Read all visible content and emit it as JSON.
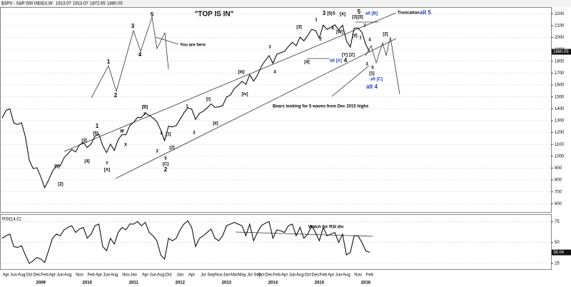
{
  "header": {
    "symbol": "$SPX - S&P 500 INDEX,W",
    "ohlc": [
      1913.07,
      1913.07,
      1872.65,
      1880.05
    ]
  },
  "chart_data": [
    {
      "type": "line",
      "title": "\"TOP IS IN\"",
      "categories": [
        null,
        "Apr",
        null,
        "Jun",
        null,
        "Aug",
        null,
        "Oct",
        null,
        "Dec",
        null,
        "Feb",
        null,
        "Apr",
        null,
        "Jun",
        null,
        "Aug",
        null,
        null,
        "Nov",
        null,
        null,
        "Feb",
        null,
        "Apr",
        null,
        "Jun",
        null,
        "Aug",
        null,
        null,
        "Nov",
        null,
        "Jan",
        null,
        null,
        "Apr",
        null,
        "Jun",
        null,
        "Aug",
        null,
        "Oct",
        null,
        null,
        "Jan",
        null,
        null,
        "Apr",
        null,
        null,
        "Jul",
        null,
        "Sep",
        null,
        "Nov",
        null,
        "Jan",
        null,
        "Mar",
        null,
        "May",
        null,
        "Jul",
        null,
        "Sep",
        "Oct",
        null,
        "Dec",
        null,
        "Feb",
        null,
        "Apr",
        null,
        "Jun",
        null,
        "Aug",
        null,
        "Oct",
        null,
        "Dec",
        null,
        "Feb",
        null,
        "Apr",
        null,
        "Jun",
        null,
        "Aug",
        null,
        null,
        "Nov",
        null,
        null,
        "Feb"
      ],
      "values": [
        1322,
        1385,
        1400,
        1280,
        1267,
        1283,
        1166,
        968,
        896,
        903,
        826,
        735,
        798,
        873,
        919,
        919,
        987,
        1021,
        1057,
        1036,
        1096,
        1115,
        1074,
        1104,
        1169,
        1187,
        1089,
        1031,
        1102,
        1049,
        1141,
        1183,
        1181,
        1258,
        1286,
        1327,
        1326,
        1364,
        1345,
        1321,
        1292,
        1219,
        1131,
        1253,
        1247,
        1258,
        1312,
        1366,
        1408,
        1398,
        1310,
        1362,
        1379,
        1407,
        1441,
        1412,
        1416,
        1426,
        1498,
        1515,
        1569,
        1598,
        1631,
        1606,
        1686,
        1633,
        1682,
        1757,
        1806,
        1848,
        1783,
        1859,
        1872,
        1884,
        1924,
        1960,
        1931,
        2003,
        1972,
        2018,
        2068,
        2059,
        1995,
        2105,
        2068,
        2086,
        2107,
        2063,
        2104,
        1972,
        1920,
        2079,
        2080,
        2044,
        1940,
        1880.05
      ],
      "color": "#111111",
      "ylim": [
        530,
        2250
      ],
      "yticks": [
        600,
        700,
        800,
        900,
        1000,
        1100,
        1200,
        1300,
        1400,
        1500,
        1600,
        1700,
        1800,
        1900,
        2000,
        2100,
        2200
      ],
      "grid": true,
      "year_labels": [
        "2009",
        "2010",
        "2011",
        "2012",
        "2013",
        "2014",
        "2015",
        "2016"
      ],
      "annotations": [
        "You are here",
        "Truncation",
        "alt 5",
        "Bears looking for 5 waves from Dec 2015 highs",
        "alt [B]",
        "alt [A]",
        "alt [C]",
        "alt 4",
        "1",
        "2",
        "3",
        "4",
        "5",
        "1",
        "[5]",
        "[3]",
        "[4]",
        "[1]",
        "[2]",
        "W",
        "X",
        "Y",
        "[A]",
        "[B]",
        "Y",
        "3",
        "4",
        "5",
        "[C]",
        "2",
        "[1]",
        "[2]",
        "1",
        "2",
        "[i]",
        "[ii]",
        "[iii]",
        "[iv]",
        "3",
        "4",
        "[3]",
        "[4]",
        "1",
        "2",
        "3",
        "[5]",
        "5",
        "[X]",
        "4",
        "[W]",
        "[Y]",
        "[Z]",
        "4",
        "[4]",
        "[3]",
        "[5]",
        "5",
        "2",
        "4",
        "1",
        "3",
        "5",
        "[1]",
        "[2]"
      ]
    },
    {
      "type": "line",
      "title": "RSI(14,C)",
      "values": [
        55,
        58,
        60,
        45,
        44,
        46,
        35,
        25,
        28,
        32,
        30,
        26,
        40,
        55,
        60,
        58,
        65,
        68,
        70,
        62,
        66,
        68,
        55,
        60,
        70,
        72,
        45,
        40,
        55,
        48,
        62,
        68,
        65,
        72,
        72,
        75,
        70,
        74,
        62,
        58,
        52,
        35,
        30,
        55,
        52,
        55,
        65,
        72,
        76,
        68,
        45,
        55,
        58,
        62,
        66,
        55,
        52,
        58,
        70,
        72,
        74,
        72,
        70,
        58,
        72,
        52,
        62,
        70,
        73,
        75,
        55,
        65,
        64,
        62,
        70,
        72,
        58,
        68,
        55,
        60,
        70,
        62,
        52,
        68,
        58,
        60,
        62,
        50,
        60,
        35,
        38,
        58,
        58,
        50,
        40,
        38.04
      ],
      "color": "#111111",
      "ylim": [
        18,
        83
      ],
      "yticks": [
        25,
        50,
        75
      ],
      "grid": true,
      "annotations": [
        "Watch for RSI div"
      ]
    }
  ]
}
